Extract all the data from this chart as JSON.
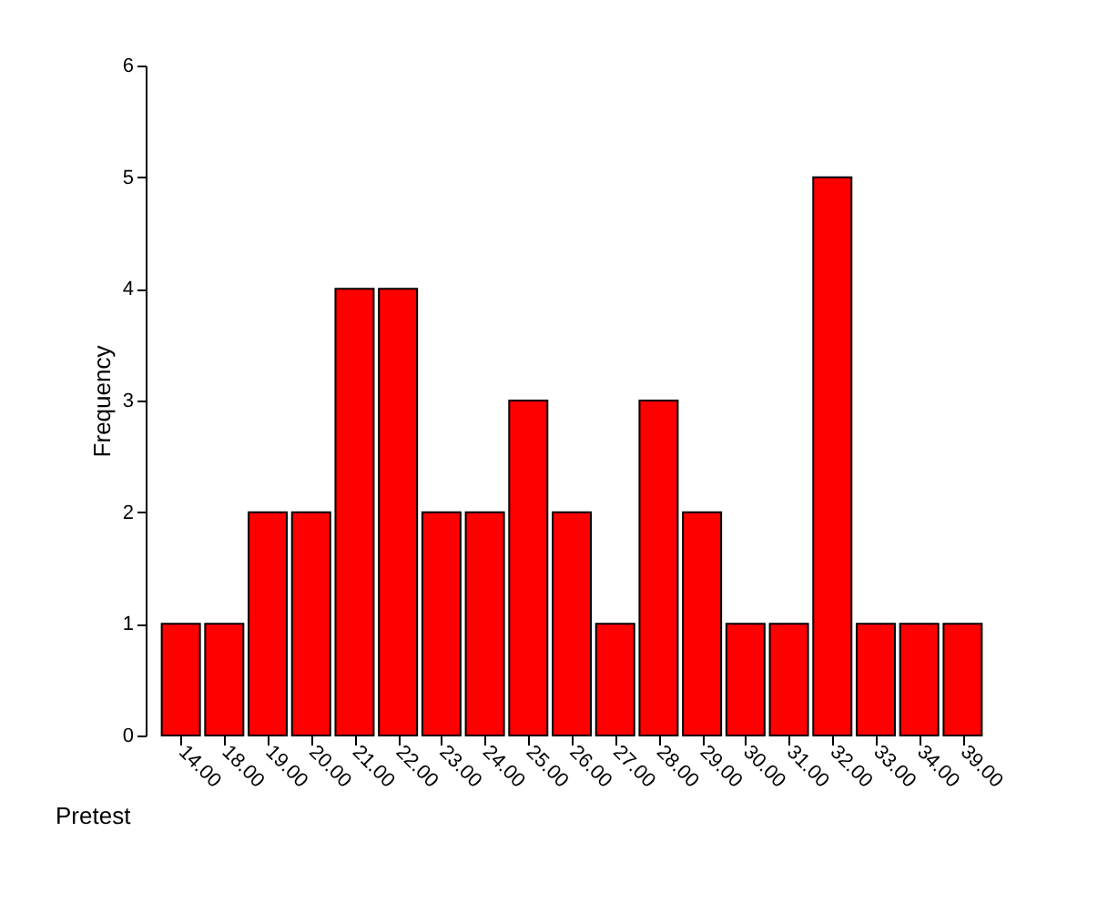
{
  "chart_data": {
    "type": "bar",
    "xlabel": "Pretest",
    "ylabel": "Frequency",
    "categories": [
      "14.00",
      "18.00",
      "19.00",
      "20.00",
      "21.00",
      "22.00",
      "23.00",
      "24.00",
      "25.00",
      "26.00",
      "27.00",
      "28.00",
      "29.00",
      "30.00",
      "31.00",
      "32.00",
      "33.00",
      "34.00",
      "39.00"
    ],
    "values": [
      1,
      1,
      2,
      2,
      4,
      4,
      2,
      2,
      3,
      2,
      1,
      3,
      2,
      1,
      1,
      5,
      1,
      1,
      1
    ],
    "color": "#ff0000",
    "ylim": [
      0,
      6
    ],
    "yticks": [
      0,
      1,
      2,
      3,
      4,
      5,
      6
    ],
    "grid": false
  }
}
